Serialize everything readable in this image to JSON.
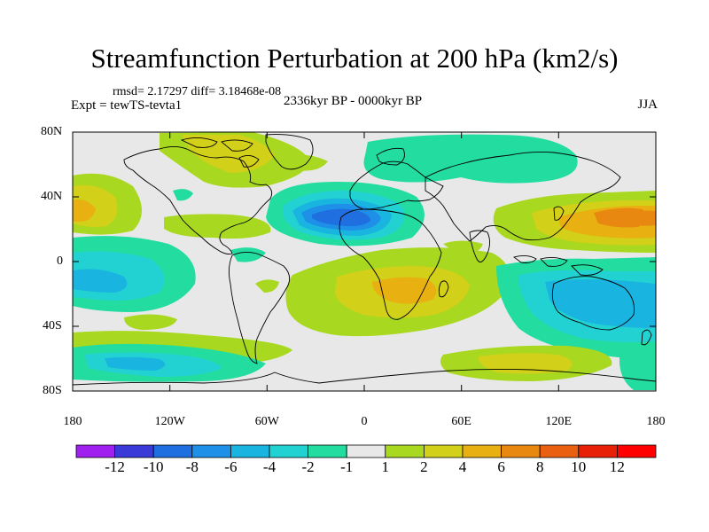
{
  "header": {
    "title": "Streamfunction Perturbation at 200 hPa (km2/s)",
    "stats": "rmsd= 2.17297 diff= 3.18468e-08",
    "expt": "Expt = tewTS-tevta1",
    "period": "2336kyr BP - 0000kyr BP",
    "season": "JJA"
  },
  "axes": {
    "lat_labels": [
      "80N",
      "40N",
      "0",
      "40S",
      "80S"
    ],
    "lon_labels": [
      "180",
      "120W",
      "60W",
      "0",
      "60E",
      "120E",
      "180"
    ]
  },
  "colorbar": {
    "labels": [
      "-12",
      "-10",
      "-8",
      "-6",
      "-4",
      "-2",
      "-1",
      "1",
      "2",
      "4",
      "6",
      "8",
      "10",
      "12"
    ],
    "colors": [
      "#a020f0",
      "#3a3ad8",
      "#1f6fe0",
      "#1e90e8",
      "#1ab4e0",
      "#22d2d2",
      "#22dca0",
      "#e8e8e8",
      "#a8d820",
      "#d2d018",
      "#e8b010",
      "#e88810",
      "#e86010",
      "#e82008",
      "#ff0000"
    ]
  },
  "field_colors": {
    "bg": "#e8e8e8",
    "pos1": "#a8d820",
    "pos2": "#d2d018",
    "pos3": "#e8b010",
    "pos4": "#e88810",
    "neg1": "#22dca0",
    "neg2": "#22d2d2",
    "neg3": "#1ab4e0",
    "neg4": "#1e90e8",
    "neg5": "#1f6fe0"
  }
}
